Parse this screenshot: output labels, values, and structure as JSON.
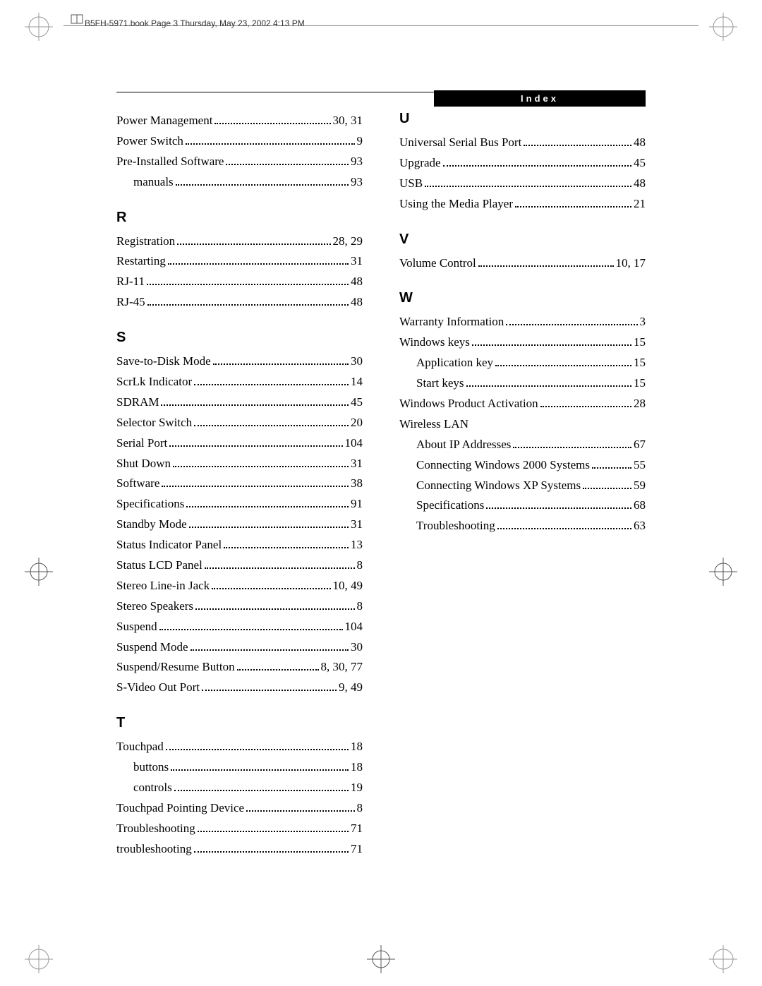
{
  "header": {
    "text": "B5FH-5971.book  Page 3  Thursday, May 23, 2002  4:13 PM"
  },
  "index_tab": "Index",
  "left": {
    "top_entries": [
      {
        "label": "Power Management",
        "page": "30, 31"
      },
      {
        "label": "Power Switch",
        "page": "9"
      },
      {
        "label": "Pre-Installed Software",
        "page": "93"
      },
      {
        "label": "manuals",
        "page": "93",
        "sub": true
      }
    ],
    "R": {
      "heading": "R",
      "entries": [
        {
          "label": "Registration",
          "page": "28, 29"
        },
        {
          "label": "Restarting",
          "page": "31"
        },
        {
          "label": "RJ-11",
          "page": "48"
        },
        {
          "label": "RJ-45",
          "page": "48"
        }
      ]
    },
    "S": {
      "heading": "S",
      "entries": [
        {
          "label": "Save-to-Disk Mode",
          "page": "30"
        },
        {
          "label": "ScrLk Indicator",
          "page": "14"
        },
        {
          "label": "SDRAM",
          "page": "45"
        },
        {
          "label": "Selector Switch",
          "page": "20"
        },
        {
          "label": "Serial Port",
          "page": "104"
        },
        {
          "label": "Shut Down",
          "page": "31"
        },
        {
          "label": "Software",
          "page": "38"
        },
        {
          "label": "Specifications",
          "page": "91"
        },
        {
          "label": "Standby Mode",
          "page": "31"
        },
        {
          "label": "Status Indicator Panel",
          "page": "13"
        },
        {
          "label": "Status LCD Panel",
          "page": "8"
        },
        {
          "label": "Stereo Line-in Jack",
          "page": "10, 49"
        },
        {
          "label": "Stereo Speakers",
          "page": "8"
        },
        {
          "label": "Suspend",
          "page": "104"
        },
        {
          "label": "Suspend Mode",
          "page": "30"
        },
        {
          "label": "Suspend/Resume Button",
          "page": "8, 30, 77"
        },
        {
          "label": "S-Video Out Port",
          "page": "9, 49"
        }
      ]
    },
    "T": {
      "heading": "T",
      "entries": [
        {
          "label": "Touchpad",
          "page": "18"
        },
        {
          "label": "buttons",
          "page": "18",
          "sub": true
        },
        {
          "label": "controls",
          "page": "19",
          "sub": true
        },
        {
          "label": "Touchpad Pointing Device",
          "page": "8"
        },
        {
          "label": "Troubleshooting",
          "page": "71"
        },
        {
          "label": "troubleshooting",
          "page": "71"
        }
      ]
    }
  },
  "right": {
    "U": {
      "heading": "U",
      "entries": [
        {
          "label": "Universal Serial Bus Port",
          "page": "48"
        },
        {
          "label": "Upgrade",
          "page": "45"
        },
        {
          "label": "USB",
          "page": "48"
        },
        {
          "label": "Using the Media Player",
          "page": "21"
        }
      ]
    },
    "V": {
      "heading": "V",
      "entries": [
        {
          "label": "Volume Control",
          "page": "10, 17"
        }
      ]
    },
    "W": {
      "heading": "W",
      "entries": [
        {
          "label": "Warranty Information",
          "page": "3"
        },
        {
          "label": "Windows keys",
          "page": "15"
        },
        {
          "label": "Application key",
          "page": "15",
          "sub": true
        },
        {
          "label": "Start keys",
          "page": "15",
          "sub": true
        },
        {
          "label": "Windows Product Activation",
          "page": "28"
        },
        {
          "label": "Wireless LAN",
          "nopage": true
        },
        {
          "label": "About IP Addresses",
          "page": "67",
          "sub": true
        },
        {
          "label": "Connecting Windows 2000 Systems",
          "page": "55",
          "sub": true
        },
        {
          "label": "Connecting Windows XP Systems",
          "page": "59",
          "sub": true
        },
        {
          "label": "Specifications",
          "page": "68",
          "sub": true
        },
        {
          "label": "Troubleshooting",
          "page": "63",
          "sub": true
        }
      ]
    }
  }
}
